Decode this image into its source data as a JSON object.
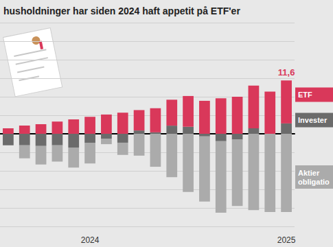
{
  "chart_data": {
    "type": "bar",
    "title": "husholdninger har siden 2024 haft appetit på ETF'er",
    "categories": [
      null,
      null,
      null,
      null,
      null,
      "2024",
      null,
      null,
      null,
      null,
      null,
      null,
      null,
      null,
      null,
      null,
      null,
      "2025"
    ],
    "series": [
      {
        "name": "Invester",
        "color": "#6b6b6b",
        "values": [
          -3.1,
          -3.1,
          -3.3,
          -3.1,
          -3.7,
          -2.4,
          -1.3,
          -2.4,
          0.9,
          0.4,
          2.2,
          1.9,
          -0.7,
          -2.0,
          -1.5,
          1.5,
          0,
          2.8
        ]
      },
      {
        "name": "ETF",
        "color": "#d9385a",
        "values": [
          1.5,
          2.2,
          2.6,
          3.3,
          3.9,
          4.6,
          5.2,
          5.7,
          5.5,
          6.5,
          7.0,
          8.3,
          8.9,
          9.6,
          10.0,
          11.5,
          11.4,
          11.6
        ],
        "value_labels": [
          null,
          null,
          null,
          null,
          null,
          null,
          null,
          null,
          null,
          null,
          null,
          null,
          null,
          null,
          null,
          null,
          null,
          "11,6"
        ]
      },
      {
        "name": "Aktier\nobligatio",
        "color": "#ababab",
        "values": [
          0,
          -3.5,
          -5.0,
          -4.4,
          -5.4,
          -5.6,
          -1.5,
          -3.3,
          -5.9,
          -8.9,
          -11.7,
          -15.7,
          -17.6,
          -19.3,
          -18.0,
          -20.6,
          -21.1,
          -21.1
        ]
      }
    ],
    "ylim": [
      -25,
      30
    ],
    "yticks": [
      -25,
      -20,
      -15,
      -10,
      -5,
      0,
      5,
      10,
      15,
      20,
      25,
      30
    ],
    "grid": true,
    "stacked": true,
    "tick_labels": "x"
  }
}
